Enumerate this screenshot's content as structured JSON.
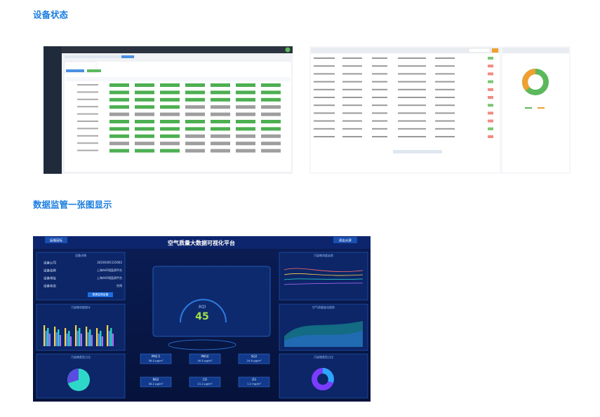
{
  "sections": [
    {
      "title": "设备状态"
    },
    {
      "title": "数据监管一张图显示"
    }
  ],
  "dashboard": {
    "title": "空气质量大数据可视化平台",
    "left_button": "后端目标",
    "right_button": "退出大屏",
    "device_panel": {
      "title": "设备详情",
      "rows": [
        {
          "label": "设备公司",
          "value": "20230301115002"
        },
        {
          "label": "设备名称",
          "value": "上海市环境监测平台"
        },
        {
          "label": "设备地址",
          "value": "上海市环境监测平台"
        },
        {
          "label": "设备状态",
          "value": "在线"
        }
      ],
      "button": "更换监测设备"
    },
    "aqi_label": "AQI",
    "aqi_value": "45",
    "pollutants": [
      {
        "name": "PM2.5",
        "value": "38.4 μg/m³"
      },
      {
        "name": "PM10",
        "value": "40.5 μg/m³"
      },
      {
        "name": "SO2",
        "value": "24.9 μg/m³"
      },
      {
        "name": "NO2",
        "value": "38.2 μg/m³"
      },
      {
        "name": "CO",
        "value": "21.2 μg/m³"
      },
      {
        "name": "O3",
        "value": "1.2 mg/m³"
      }
    ],
    "panel_titles": [
      "设备详情",
      "污染物浓度统计",
      "污染物类型占比",
      "污染物浓度走势",
      "空气质量变化趋势",
      "污染物类型占比"
    ]
  }
}
